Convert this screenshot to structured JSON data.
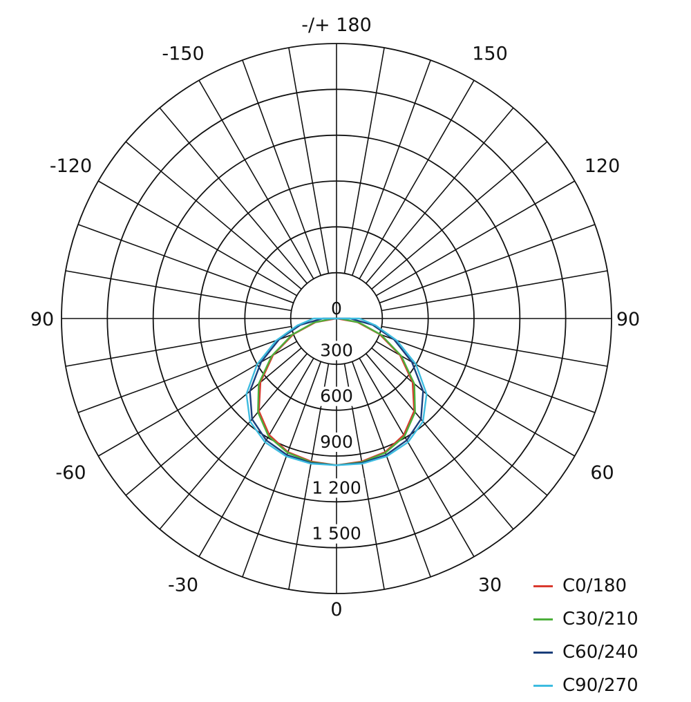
{
  "chart_data": {
    "type": "polar",
    "angle_labels": [
      {
        "text": "-/+ 180",
        "angle": 180
      },
      {
        "text": "150",
        "angle": 150
      },
      {
        "text": "-150",
        "angle": -150
      },
      {
        "text": "120",
        "angle": 120
      },
      {
        "text": "-120",
        "angle": -120
      },
      {
        "text": "90",
        "angle": 90
      },
      {
        "text": "90",
        "angle": -90
      },
      {
        "text": "60",
        "angle": 60
      },
      {
        "text": "-60",
        "angle": -60
      },
      {
        "text": "30",
        "angle": 30
      },
      {
        "text": "-30",
        "angle": -30
      },
      {
        "text": "0",
        "angle": 0
      }
    ],
    "radial_ticks": [
      {
        "value": 0,
        "label": "0"
      },
      {
        "value": 300,
        "label": "300"
      },
      {
        "value": 600,
        "label": "600"
      },
      {
        "value": 900,
        "label": "900"
      },
      {
        "value": 1200,
        "label": "1 200"
      },
      {
        "value": 1500,
        "label": "1 500"
      }
    ],
    "r_grid_values": [
      300,
      600,
      900,
      1200,
      1500,
      1800
    ],
    "radial_spoke_step_deg": 10,
    "angles": [
      0,
      10,
      20,
      30,
      40,
      50,
      60,
      70,
      80,
      90
    ],
    "series": [
      {
        "name": "C0/180",
        "color": "#d9392e",
        "values": [
          960,
          950,
          930,
          880,
          790,
          650,
          480,
          300,
          140,
          0
        ]
      },
      {
        "name": "C30/210",
        "color": "#4caf3a",
        "values": [
          960,
          955,
          935,
          890,
          800,
          665,
          490,
          310,
          150,
          20
        ]
      },
      {
        "name": "C60/240",
        "color": "#1a3e7a",
        "values": [
          960,
          960,
          950,
          920,
          860,
          740,
          570,
          400,
          240,
          90
        ]
      },
      {
        "name": "C90/270",
        "color": "#3dbce0",
        "values": [
          960,
          965,
          960,
          935,
          880,
          770,
          600,
          420,
          260,
          150
        ]
      }
    ]
  }
}
